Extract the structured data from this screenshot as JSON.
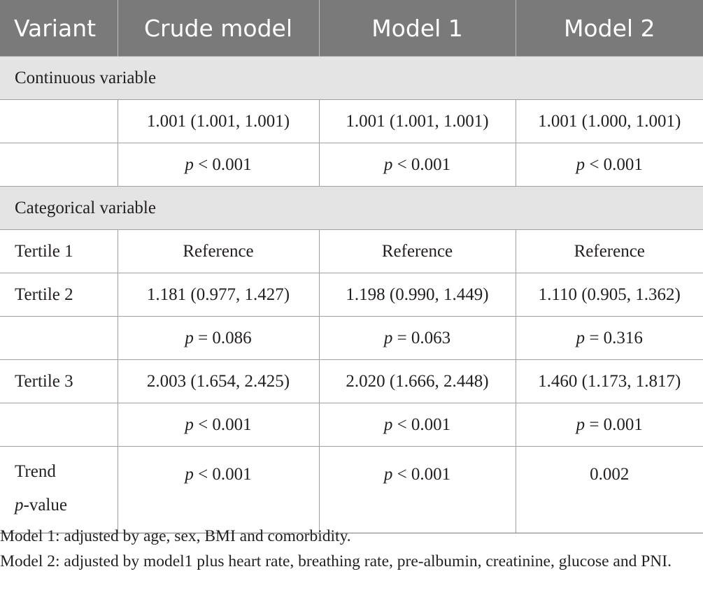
{
  "table": {
    "headers": [
      "Variant",
      "Crude model",
      "Model 1",
      "Model 2"
    ],
    "sections": {
      "continuous": {
        "title": "Continuous variable",
        "estimate_row": [
          "",
          "1.001 (1.001, 1.001)",
          "1.001 (1.001, 1.001)",
          "1.001 (1.000, 1.001)"
        ],
        "p_row": [
          "",
          "< 0.001",
          "< 0.001",
          "< 0.001"
        ]
      },
      "categorical": {
        "title": "Categorical variable",
        "tertile1": [
          "Tertile 1",
          "Reference",
          "Reference",
          "Reference"
        ],
        "tertile2": [
          "Tertile 2",
          "1.181 (0.977, 1.427)",
          "1.198 (0.990, 1.449)",
          "1.110 (0.905, 1.362)"
        ],
        "tertile2_p": [
          "",
          "= 0.086",
          "= 0.063",
          "= 0.316"
        ],
        "tertile3": [
          "Tertile 3",
          "2.003 (1.654, 2.425)",
          "2.020 (1.666, 2.448)",
          "1.460 (1.173, 1.817)"
        ],
        "tertile3_p": [
          "",
          "< 0.001",
          "< 0.001",
          "= 0.001"
        ],
        "trend": {
          "label_line1": "Trend",
          "label_p": "p",
          "label_line2_rest": "-value",
          "values": [
            "< 0.001",
            "< 0.001",
            "0.002"
          ]
        }
      }
    },
    "p_symbol": "p"
  },
  "notes": [
    "Model 1: adjusted by age, sex, BMI and comorbidity.",
    "Model 2: adjusted by model1 plus heart rate, breathing rate, pre-albumin, creatinine, glucose and PNI."
  ]
}
